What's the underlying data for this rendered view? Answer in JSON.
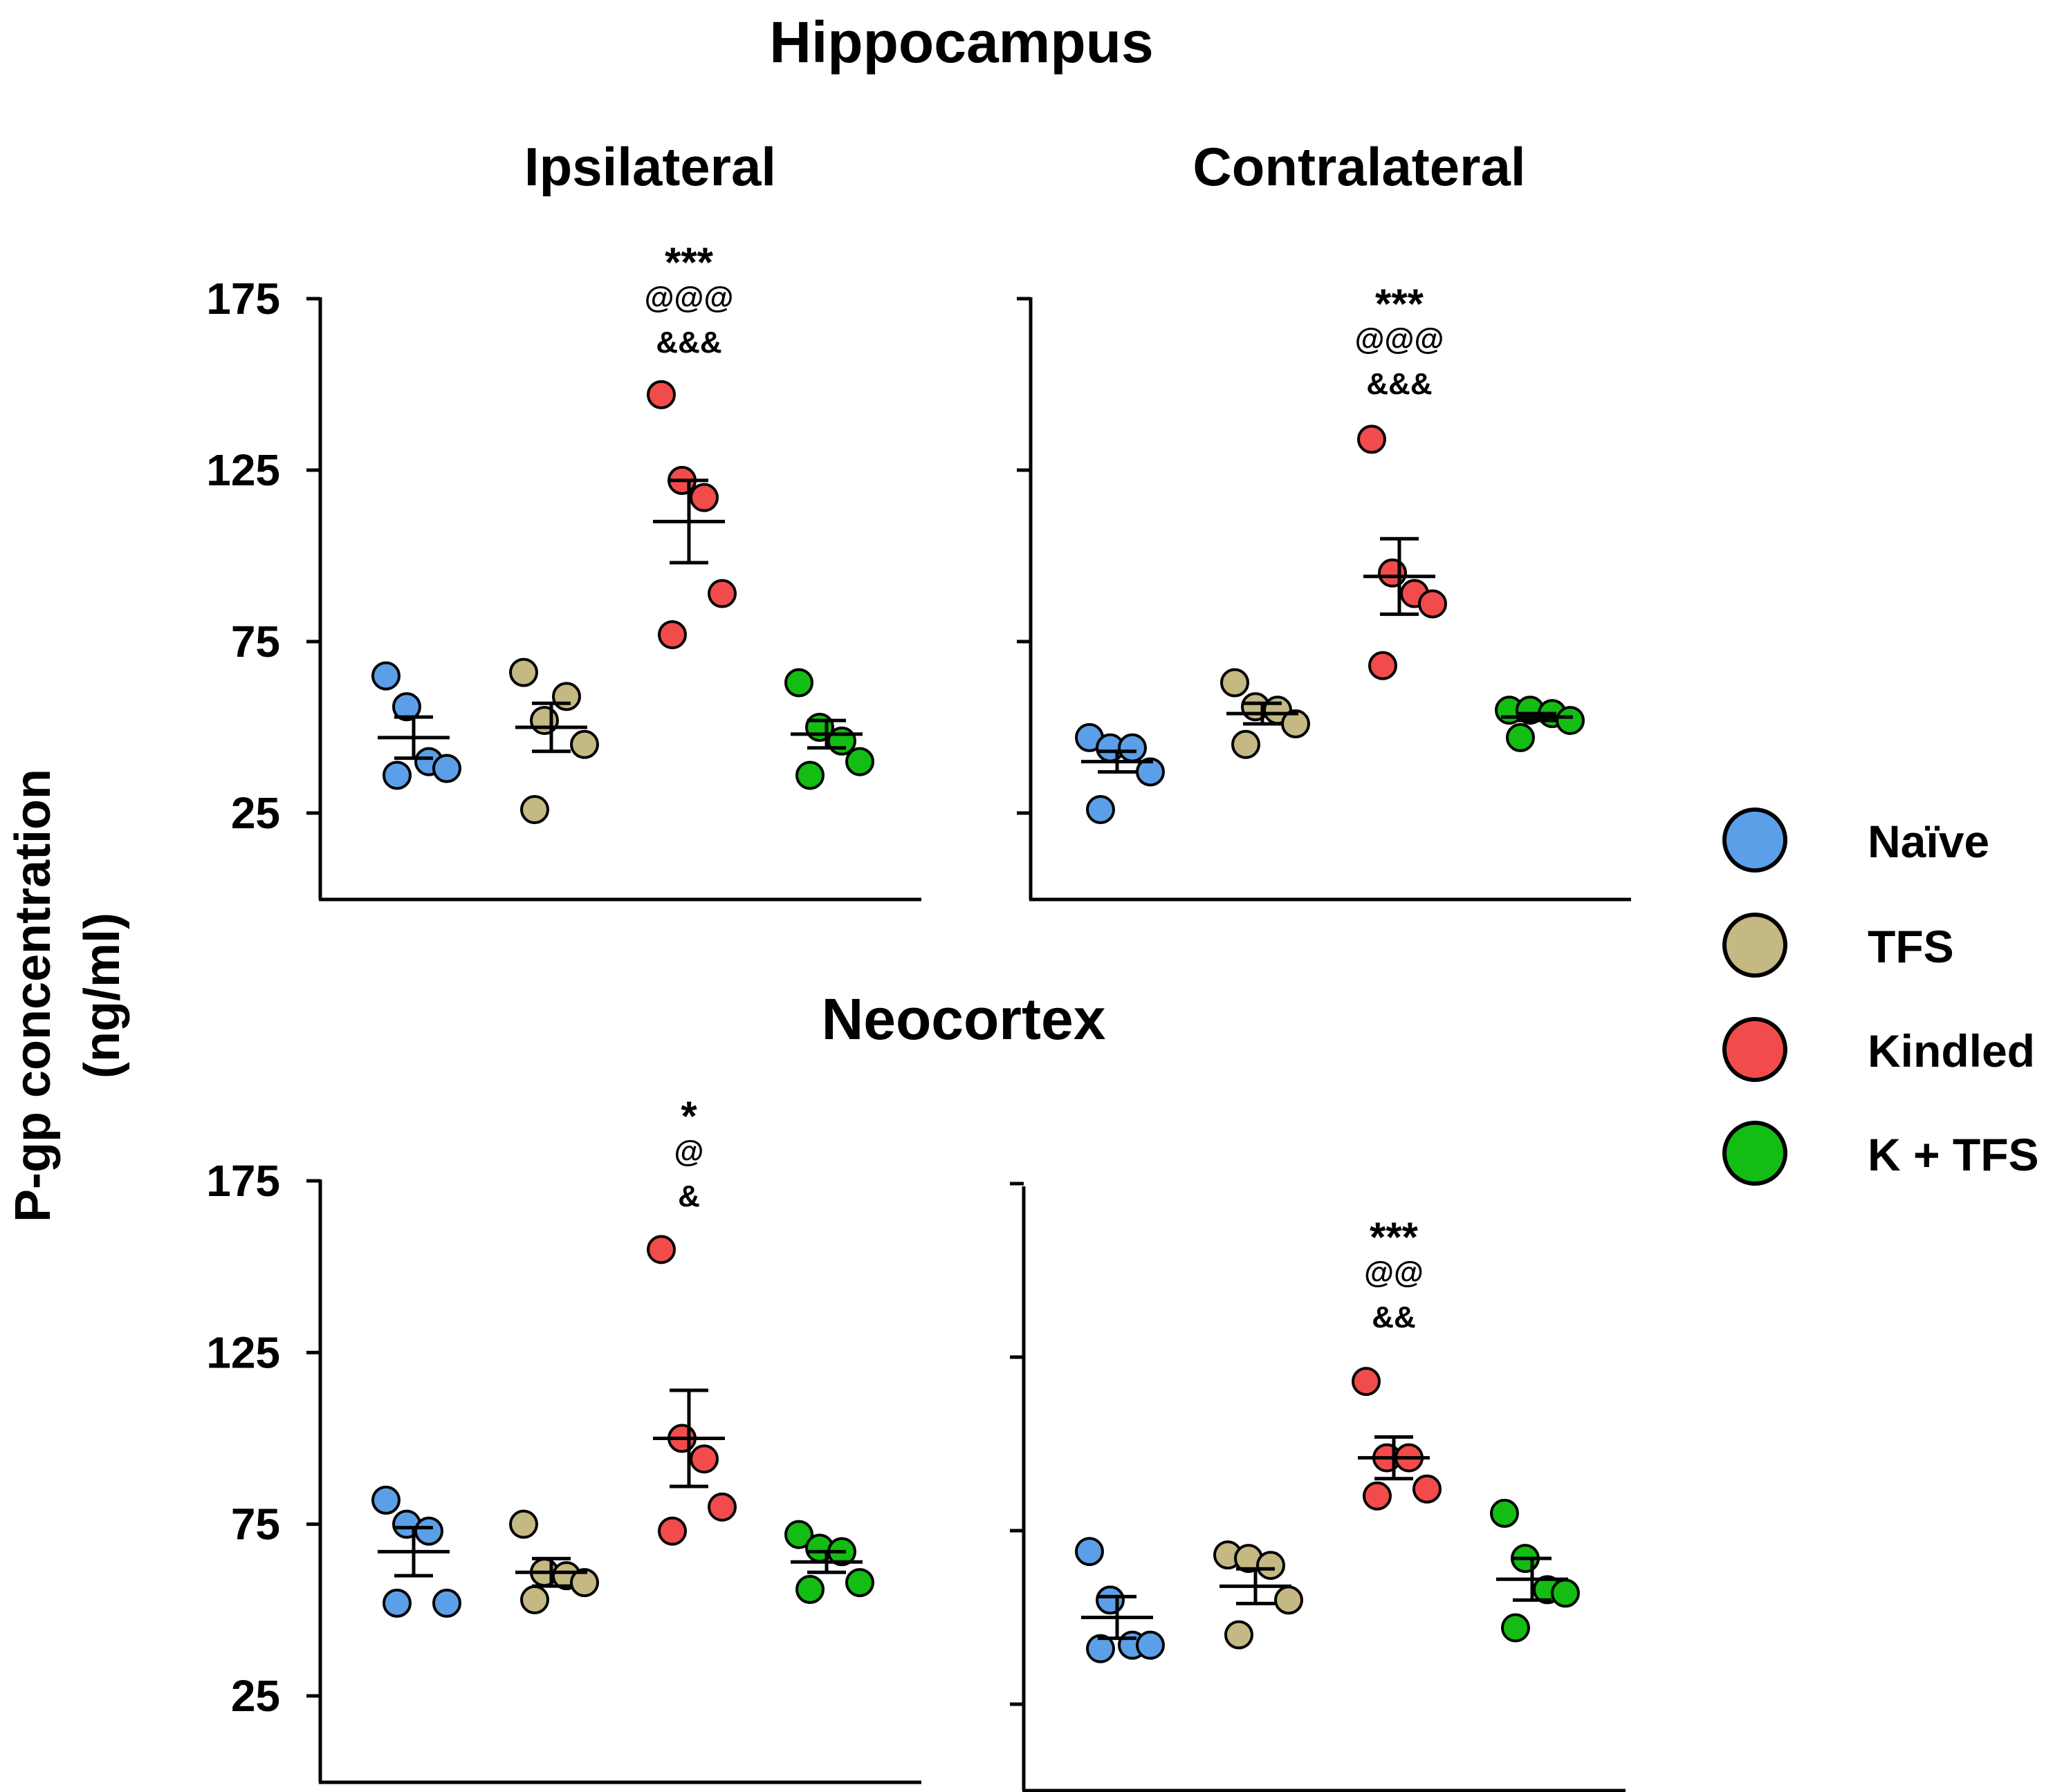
{
  "chart_data": {
    "type": "scatter",
    "y_axis_label": "P-gp concentration (ng/ml)",
    "y_axis_label_lines": [
      "P-gp concentration",
      "(ng/ml)"
    ],
    "ylim": [
      0,
      180
    ],
    "yticks": [
      25,
      75,
      125,
      175
    ],
    "sections": [
      {
        "title": "Hippocampus"
      },
      {
        "title": "Neocortex"
      }
    ],
    "legend": [
      {
        "label": "Naïve",
        "color": "#5b9fe8"
      },
      {
        "label": "TFS",
        "color": "#c4b883"
      },
      {
        "label": "Kindled",
        "color": "#f24b4b"
      },
      {
        "label": "K + TFS",
        "color": "#13bd13"
      }
    ],
    "panels": [
      {
        "region": "Hippocampus",
        "subtitle": "Ipsilateral",
        "groups": [
          {
            "name": "Naïve",
            "points": [
              65,
              56,
              40,
              38,
              36
            ],
            "mean": 47,
            "sem": 6
          },
          {
            "name": "TFS",
            "points": [
              66,
              52,
              59,
              45,
              26
            ],
            "mean": 50,
            "sem": 7
          },
          {
            "name": "Kindled",
            "points": [
              147,
              122,
              117,
              89,
              77
            ],
            "mean": 110,
            "sem": 12
          },
          {
            "name": "K + TFS",
            "points": [
              63,
              50,
              46,
              40,
              36
            ],
            "mean": 48,
            "sem": 4
          }
        ],
        "annotations": [
          "***",
          "@@@",
          "&&&"
        ]
      },
      {
        "region": "Hippocampus",
        "subtitle": "Contralateral",
        "groups": [
          {
            "name": "Naïve",
            "points": [
              47,
              44,
              44,
              37,
              26
            ],
            "mean": 40,
            "sem": 3
          },
          {
            "name": "TFS",
            "points": [
              63,
              56,
              55,
              51,
              45
            ],
            "mean": 54,
            "sem": 3
          },
          {
            "name": "Kindled",
            "points": [
              134,
              95,
              89,
              86,
              68
            ],
            "mean": 94,
            "sem": 11
          },
          {
            "name": "K + TFS",
            "points": [
              55,
              55,
              54,
              52,
              47
            ],
            "mean": 53,
            "sem": 1
          }
        ],
        "annotations": [
          "***",
          "@@@",
          "&&&"
        ]
      },
      {
        "region": "Neocortex",
        "subtitle": "",
        "groups": [
          {
            "name": "Naïve",
            "points": [
              82,
              75,
              73,
              52,
              52
            ],
            "mean": 67,
            "sem": 7
          },
          {
            "name": "TFS",
            "points": [
              75,
              61,
              60,
              58,
              53
            ],
            "mean": 61,
            "sem": 4
          },
          {
            "name": "Kindled",
            "points": [
              155,
              100,
              94,
              80,
              73
            ],
            "mean": 100,
            "sem": 14
          },
          {
            "name": "K + TFS",
            "points": [
              72,
              68,
              67,
              58,
              56
            ],
            "mean": 64,
            "sem": 3
          }
        ],
        "annotations": [
          "*",
          "@",
          "&"
        ]
      },
      {
        "region": "Neocortex",
        "subtitle": "",
        "groups": [
          {
            "name": "Naïve",
            "points": [
              69,
              55,
              42,
              42,
              41
            ],
            "mean": 50,
            "sem": 6
          },
          {
            "name": "TFS",
            "points": [
              68,
              67,
              65,
              55,
              45
            ],
            "mean": 59,
            "sem": 5
          },
          {
            "name": "Kindled",
            "points": [
              118,
              96,
              96,
              87,
              85
            ],
            "mean": 96,
            "sem": 6
          },
          {
            "name": "K + TFS",
            "points": [
              80,
              67,
              58,
              57,
              47
            ],
            "mean": 61,
            "sem": 6
          }
        ],
        "annotations": [
          "***",
          "@@",
          "&&"
        ]
      }
    ]
  }
}
